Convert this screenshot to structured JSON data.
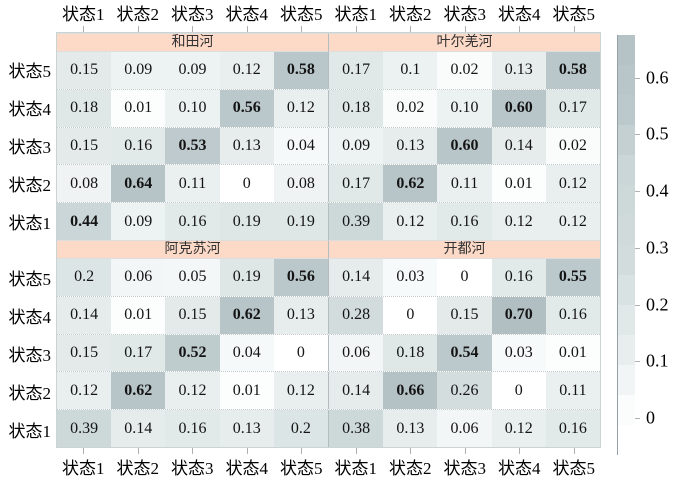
{
  "chart_data": {
    "type": "heatmap",
    "description": "Markov state transition probability matrices for four rivers, 5x5 each, faceted 2x2 with shared axes and a common colorbar",
    "x_tick_labels": [
      "状态1",
      "状态2",
      "状态3",
      "状态4",
      "状态5",
      "状态1",
      "状态2",
      "状态3",
      "状态4",
      "状态5"
    ],
    "y_tick_labels_per_block": [
      "状态5",
      "状态4",
      "状态3",
      "状态2",
      "状态1"
    ],
    "facets": [
      {
        "name": "和田河",
        "rows": [
          "状态5",
          "状态4",
          "状态3",
          "状态2",
          "状态1"
        ],
        "cols": [
          "状态1",
          "状态2",
          "状态3",
          "状态4",
          "状态5"
        ],
        "values": [
          [
            "0.15",
            "0.09",
            "0.09",
            "0.12",
            "0.58"
          ],
          [
            "0.18",
            "0.01",
            "0.10",
            "0.56",
            "0.12"
          ],
          [
            "0.15",
            "0.16",
            "0.53",
            "0.13",
            "0.04"
          ],
          [
            "0.08",
            "0.64",
            "0.11",
            "0",
            "0.08"
          ],
          [
            "0.44",
            "0.09",
            "0.16",
            "0.19",
            "0.19"
          ]
        ]
      },
      {
        "name": "叶尔羌河",
        "rows": [
          "状态5",
          "状态4",
          "状态3",
          "状态2",
          "状态1"
        ],
        "cols": [
          "状态1",
          "状态2",
          "状态3",
          "状态4",
          "状态5"
        ],
        "values": [
          [
            "0.17",
            "0.1",
            "0.02",
            "0.13",
            "0.58"
          ],
          [
            "0.18",
            "0.02",
            "0.10",
            "0.60",
            "0.17"
          ],
          [
            "0.09",
            "0.13",
            "0.60",
            "0.14",
            "0.02"
          ],
          [
            "0.17",
            "0.62",
            "0.11",
            "0.01",
            "0.12"
          ],
          [
            "0.39",
            "0.12",
            "0.16",
            "0.12",
            "0.12"
          ]
        ]
      },
      {
        "name": "阿克苏河",
        "rows": [
          "状态5",
          "状态4",
          "状态3",
          "状态2",
          "状态1"
        ],
        "cols": [
          "状态1",
          "状态2",
          "状态3",
          "状态4",
          "状态5"
        ],
        "values": [
          [
            "0.2",
            "0.06",
            "0.05",
            "0.19",
            "0.56"
          ],
          [
            "0.14",
            "0.01",
            "0.15",
            "0.62",
            "0.13"
          ],
          [
            "0.15",
            "0.17",
            "0.52",
            "0.04",
            "0"
          ],
          [
            "0.12",
            "0.62",
            "0.12",
            "0.01",
            "0.12"
          ],
          [
            "0.39",
            "0.14",
            "0.16",
            "0.13",
            "0.2"
          ]
        ]
      },
      {
        "name": "开都河",
        "rows": [
          "状态5",
          "状态4",
          "状态3",
          "状态2",
          "状态1"
        ],
        "cols": [
          "状态1",
          "状态2",
          "状态3",
          "状态4",
          "状态5"
        ],
        "values": [
          [
            "0.14",
            "0.03",
            "0",
            "0.16",
            "0.55"
          ],
          [
            "0.28",
            "0",
            "0.15",
            "0.70",
            "0.16"
          ],
          [
            "0.06",
            "0.18",
            "0.54",
            "0.03",
            "0.01"
          ],
          [
            "0.14",
            "0.66",
            "0.26",
            "0",
            "0.11"
          ],
          [
            "0.38",
            "0.13",
            "0.06",
            "0.12",
            "0.16"
          ]
        ]
      }
    ],
    "bold_rule_min_value": 0.44,
    "colorbar": {
      "tick_labels": [
        "0.6",
        "0.5",
        "0.4",
        "0.3",
        "0.2",
        "0.1",
        "0"
      ],
      "legend_position": "right",
      "segments": 14,
      "value_at_top": 0.675,
      "value_at_bottom": -0.065
    },
    "colors": {
      "strip_fill": "#fdd9c7",
      "strip_text": "#333333",
      "scale_stops": [
        [
          0.0,
          "#ffffff"
        ],
        [
          0.03,
          "#f7fafa"
        ],
        [
          0.09,
          "#edf2f2"
        ],
        [
          0.15,
          "#e4eaea"
        ],
        [
          0.2,
          "#dce5e5"
        ],
        [
          0.26,
          "#d3ddde"
        ],
        [
          0.39,
          "#cdd8d9"
        ],
        [
          0.44,
          "#cbd6d8"
        ],
        [
          0.54,
          "#bcc9cc"
        ],
        [
          0.62,
          "#b7c5c8"
        ],
        [
          0.7,
          "#b1bfc2"
        ]
      ]
    }
  }
}
